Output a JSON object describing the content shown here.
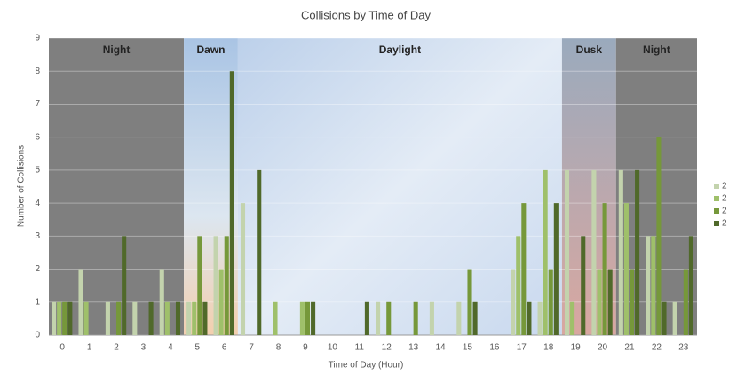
{
  "chart_data": {
    "type": "bar",
    "title": "Collisions by Time of Day",
    "x_label": "Time of Day (Hour)",
    "y_label": "Number of Collisions",
    "categories": [
      "0",
      "1",
      "2",
      "3",
      "4",
      "5",
      "6",
      "7",
      "8",
      "9",
      "10",
      "11",
      "12",
      "13",
      "14",
      "15",
      "16",
      "17",
      "18",
      "19",
      "20",
      "21",
      "22",
      "23"
    ],
    "series": [
      {
        "name": "2",
        "color": "#c3d3ad",
        "values": [
          1,
          2,
          1,
          1,
          2,
          1,
          3,
          4,
          0,
          0,
          0,
          0,
          1,
          0,
          1,
          1,
          0,
          2,
          1,
          5,
          5,
          5,
          3,
          1
        ]
      },
      {
        "name": "2",
        "color": "#9fc06a",
        "values": [
          1,
          1,
          0,
          0,
          1,
          1,
          2,
          0,
          1,
          1,
          0,
          0,
          0,
          0,
          0,
          0,
          0,
          3,
          5,
          1,
          2,
          4,
          3,
          0
        ]
      },
      {
        "name": "2",
        "color": "#76983a",
        "values": [
          1,
          0,
          1,
          0,
          0,
          3,
          3,
          0,
          0,
          1,
          0,
          0,
          1,
          1,
          0,
          2,
          0,
          4,
          2,
          0,
          4,
          2,
          6,
          2
        ]
      },
      {
        "name": "2",
        "color": "#50692a",
        "values": [
          1,
          0,
          3,
          1,
          1,
          1,
          8,
          5,
          0,
          1,
          0,
          1,
          0,
          0,
          0,
          1,
          0,
          1,
          4,
          3,
          2,
          5,
          1,
          3
        ]
      }
    ],
    "bands": [
      {
        "label": "Night",
        "first": "0",
        "last": "4"
      },
      {
        "label": "Dawn",
        "first": "5",
        "last": "6"
      },
      {
        "label": "Daylight",
        "first": "7",
        "last": "18"
      },
      {
        "label": "Dusk",
        "first": "19",
        "last": "20"
      },
      {
        "label": "Night",
        "first": "21",
        "last": "23"
      }
    ],
    "ylim": [
      0,
      9
    ],
    "yticks": [
      0,
      1,
      2,
      3,
      4,
      5,
      6,
      7,
      8,
      9
    ],
    "grid": true
  }
}
